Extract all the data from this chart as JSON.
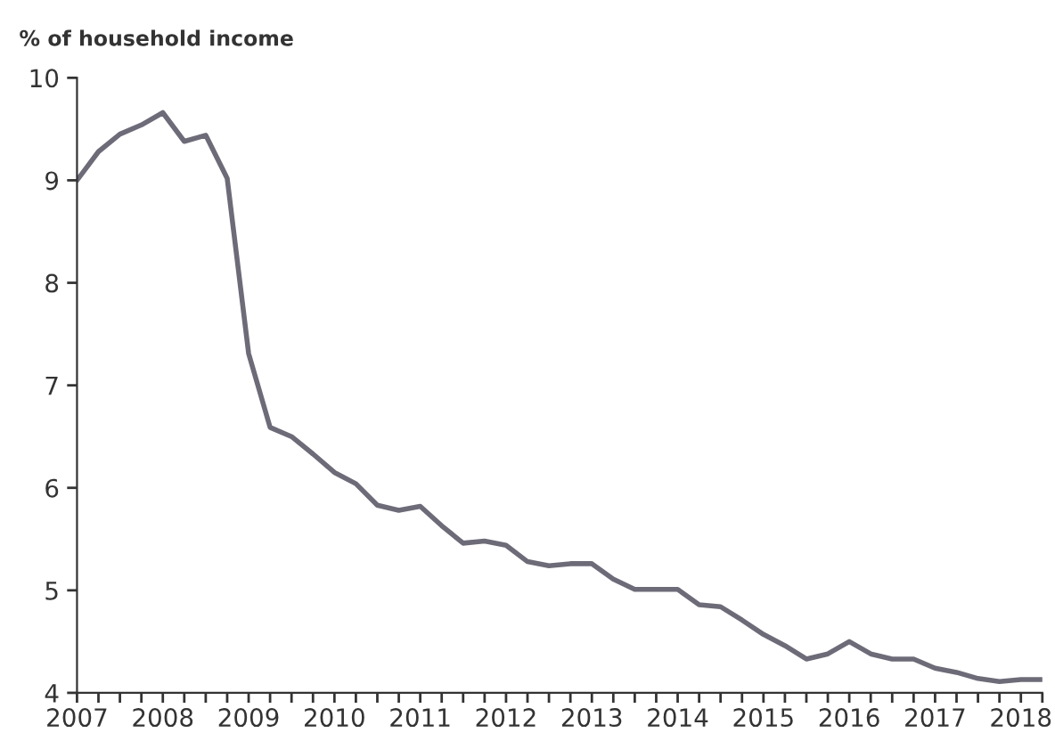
{
  "chart_data": {
    "type": "line",
    "ylabel": "% of household income",
    "x": [
      2007.0,
      2007.25,
      2007.5,
      2007.75,
      2008.0,
      2008.25,
      2008.5,
      2008.75,
      2009.0,
      2009.25,
      2009.5,
      2009.75,
      2010.0,
      2010.25,
      2010.5,
      2010.75,
      2011.0,
      2011.25,
      2011.5,
      2011.75,
      2012.0,
      2012.25,
      2012.5,
      2012.75,
      2013.0,
      2013.25,
      2013.5,
      2013.75,
      2014.0,
      2014.25,
      2014.5,
      2014.75,
      2015.0,
      2015.25,
      2015.5,
      2015.75,
      2016.0,
      2016.25,
      2016.5,
      2016.75,
      2017.0,
      2017.25,
      2017.5,
      2017.75,
      2018.0,
      2018.25
    ],
    "series": [
      {
        "color": "#6e6b78",
        "values": [
          9.0,
          9.28,
          9.45,
          9.54,
          9.66,
          9.38,
          9.44,
          9.02,
          7.31,
          6.59,
          6.5,
          6.33,
          6.15,
          6.04,
          5.83,
          5.78,
          5.82,
          5.63,
          5.46,
          5.48,
          5.44,
          5.28,
          5.24,
          5.26,
          5.26,
          5.11,
          5.01,
          5.01,
          5.01,
          4.86,
          4.84,
          4.71,
          4.57,
          4.46,
          4.33,
          4.38,
          4.5,
          4.38,
          4.33,
          4.33,
          4.24,
          4.2,
          4.14,
          4.11,
          4.13,
          4.13
        ]
      }
    ],
    "xlim": [
      2007,
      2018.25
    ],
    "ylim": [
      4,
      10
    ],
    "yticks": [
      4,
      5,
      6,
      7,
      8,
      9,
      10
    ],
    "xticks": [
      2007,
      {
        "value": 2007.25,
        "label": null
      },
      {
        "value": 2007.5,
        "label": null
      },
      {
        "value": 2007.75,
        "label": null
      },
      2008,
      {
        "value": 2008.25,
        "label": null
      },
      {
        "value": 2008.5,
        "label": null
      },
      {
        "value": 2008.75,
        "label": null
      },
      2009,
      {
        "value": 2009.25,
        "label": null
      },
      {
        "value": 2009.5,
        "label": null
      },
      {
        "value": 2009.75,
        "label": null
      },
      2010,
      {
        "value": 2010.25,
        "label": null
      },
      {
        "value": 2010.5,
        "label": null
      },
      {
        "value": 2010.75,
        "label": null
      },
      2011,
      {
        "value": 2011.25,
        "label": null
      },
      {
        "value": 2011.5,
        "label": null
      },
      {
        "value": 2011.75,
        "label": null
      },
      2012,
      {
        "value": 2012.25,
        "label": null
      },
      {
        "value": 2012.5,
        "label": null
      },
      {
        "value": 2012.75,
        "label": null
      },
      2013,
      {
        "value": 2013.25,
        "label": null
      },
      {
        "value": 2013.5,
        "label": null
      },
      {
        "value": 2013.75,
        "label": null
      },
      2014,
      {
        "value": 2014.25,
        "label": null
      },
      {
        "value": 2014.5,
        "label": null
      },
      {
        "value": 2014.75,
        "label": null
      },
      2015,
      {
        "value": 2015.25,
        "label": null
      },
      {
        "value": 2015.5,
        "label": null
      },
      {
        "value": 2015.75,
        "label": null
      },
      2016,
      {
        "value": 2016.25,
        "label": null
      },
      {
        "value": 2016.5,
        "label": null
      },
      {
        "value": 2016.75,
        "label": null
      },
      2017,
      {
        "value": 2017.25,
        "label": null
      },
      {
        "value": 2017.5,
        "label": null
      },
      {
        "value": 2017.75,
        "label": null
      },
      2018,
      {
        "value": 2018.25,
        "label": null
      }
    ],
    "grid": false
  }
}
